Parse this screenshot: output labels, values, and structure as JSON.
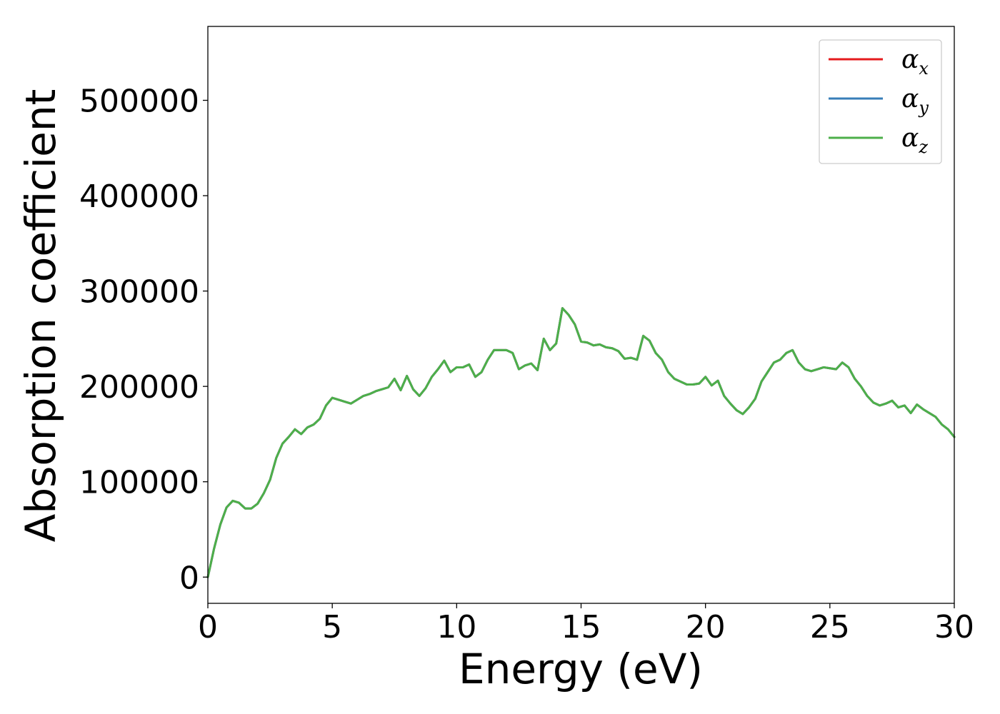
{
  "chart_data": {
    "type": "line",
    "xlabel": "Energy (eV)",
    "ylabel": "Absorption coefficient",
    "xlim": [
      0,
      30
    ],
    "ylim": [
      -27500,
      577500
    ],
    "xticks": [
      0,
      5,
      10,
      15,
      20,
      25,
      30
    ],
    "xtick_labels": [
      "0",
      "5",
      "10",
      "15",
      "20",
      "25",
      "30"
    ],
    "yticks": [
      0,
      100000,
      200000,
      300000,
      400000,
      500000
    ],
    "ytick_labels": [
      "0",
      "100000",
      "200000",
      "300000",
      "400000",
      "500000"
    ],
    "grid": false,
    "legend_position": "top-right",
    "x": [
      0.0,
      0.25,
      0.5,
      0.75,
      1.0,
      1.25,
      1.5,
      1.75,
      2.0,
      2.25,
      2.5,
      2.75,
      3.0,
      3.25,
      3.5,
      3.75,
      4.0,
      4.25,
      4.5,
      4.75,
      5.0,
      5.25,
      5.5,
      5.75,
      6.0,
      6.25,
      6.5,
      6.75,
      7.0,
      7.25,
      7.5,
      7.75,
      8.0,
      8.25,
      8.5,
      8.75,
      9.0,
      9.25,
      9.5,
      9.75,
      10.0,
      10.25,
      10.5,
      10.75,
      11.0,
      11.25,
      11.5,
      11.75,
      12.0,
      12.25,
      12.5,
      12.75,
      13.0,
      13.25,
      13.5,
      13.75,
      14.0,
      14.25,
      14.5,
      14.75,
      15.0,
      15.25,
      15.5,
      15.75,
      16.0,
      16.25,
      16.5,
      16.75,
      17.0,
      17.25,
      17.5,
      17.75,
      18.0,
      18.25,
      18.5,
      18.75,
      19.0,
      19.25,
      19.5,
      19.75,
      20.0,
      20.25,
      20.5,
      20.75,
      21.0,
      21.25,
      21.5,
      21.75,
      22.0,
      22.25,
      22.5,
      22.75,
      23.0,
      23.25,
      23.5,
      23.75,
      24.0,
      24.25,
      24.5,
      24.75,
      25.0,
      25.25,
      25.5,
      25.75,
      26.0,
      26.25,
      26.5,
      26.75,
      27.0,
      27.25,
      27.5,
      27.75,
      28.0,
      28.25,
      28.5,
      28.75,
      29.0,
      29.25,
      29.5,
      29.75,
      30.0
    ],
    "series": [
      {
        "name": "αx",
        "label_main": "α",
        "label_sub": "x",
        "color": "#e41a1c",
        "values": [
          0,
          30000,
          55000,
          73000,
          80000,
          78000,
          72000,
          72000,
          77000,
          88000,
          102000,
          125000,
          140000,
          147000,
          155000,
          150000,
          157000,
          160000,
          166000,
          180000,
          188000,
          186000,
          184000,
          182000,
          186000,
          190000,
          192000,
          195000,
          197000,
          199000,
          208000,
          196000,
          211000,
          197000,
          190000,
          198000,
          210000,
          218000,
          227000,
          215000,
          220000,
          220000,
          223000,
          210000,
          215000,
          228000,
          238000,
          238000,
          238000,
          235000,
          218000,
          222000,
          224000,
          217000,
          250000,
          238000,
          245000,
          282000,
          275000,
          265000,
          247000,
          246000,
          243000,
          244000,
          241000,
          240000,
          237000,
          229000,
          230000,
          228000,
          253000,
          248000,
          235000,
          228000,
          215000,
          208000,
          205000,
          202000,
          202000,
          203000,
          210000,
          201000,
          206000,
          190000,
          182000,
          175000,
          171000,
          178000,
          187000,
          205000,
          215000,
          225000,
          228000,
          235000,
          238000,
          225000,
          218000,
          216000,
          218000,
          220000,
          219000,
          218000,
          225000,
          220000,
          208000,
          200000,
          190000,
          183000,
          180000,
          182000,
          185000,
          178000,
          180000,
          172000,
          181000,
          176000,
          172000,
          168000,
          160000,
          155000,
          147000
        ]
      },
      {
        "name": "αy",
        "label_main": "α",
        "label_sub": "y",
        "color": "#377eb8",
        "values": [
          0,
          30000,
          55000,
          73000,
          80000,
          78000,
          72000,
          72000,
          77000,
          88000,
          102000,
          125000,
          140000,
          147000,
          155000,
          150000,
          157000,
          160000,
          166000,
          180000,
          188000,
          186000,
          184000,
          182000,
          186000,
          190000,
          192000,
          195000,
          197000,
          199000,
          208000,
          196000,
          211000,
          197000,
          190000,
          198000,
          210000,
          218000,
          227000,
          215000,
          220000,
          220000,
          223000,
          210000,
          215000,
          228000,
          238000,
          238000,
          238000,
          235000,
          218000,
          222000,
          224000,
          217000,
          250000,
          238000,
          245000,
          282000,
          275000,
          265000,
          247000,
          246000,
          243000,
          244000,
          241000,
          240000,
          237000,
          229000,
          230000,
          228000,
          253000,
          248000,
          235000,
          228000,
          215000,
          208000,
          205000,
          202000,
          202000,
          203000,
          210000,
          201000,
          206000,
          190000,
          182000,
          175000,
          171000,
          178000,
          187000,
          205000,
          215000,
          225000,
          228000,
          235000,
          238000,
          225000,
          218000,
          216000,
          218000,
          220000,
          219000,
          218000,
          225000,
          220000,
          208000,
          200000,
          190000,
          183000,
          180000,
          182000,
          185000,
          178000,
          180000,
          172000,
          181000,
          176000,
          172000,
          168000,
          160000,
          155000,
          147000
        ]
      },
      {
        "name": "αz",
        "label_main": "α",
        "label_sub": "z",
        "color": "#4daf4a",
        "values": [
          0,
          30000,
          55000,
          73000,
          80000,
          78000,
          72000,
          72000,
          77000,
          88000,
          102000,
          125000,
          140000,
          147000,
          155000,
          150000,
          157000,
          160000,
          166000,
          180000,
          188000,
          186000,
          184000,
          182000,
          186000,
          190000,
          192000,
          195000,
          197000,
          199000,
          208000,
          196000,
          211000,
          197000,
          190000,
          198000,
          210000,
          218000,
          227000,
          215000,
          220000,
          220000,
          223000,
          210000,
          215000,
          228000,
          238000,
          238000,
          238000,
          235000,
          218000,
          222000,
          224000,
          217000,
          250000,
          238000,
          245000,
          282000,
          275000,
          265000,
          247000,
          246000,
          243000,
          244000,
          241000,
          240000,
          237000,
          229000,
          230000,
          228000,
          253000,
          248000,
          235000,
          228000,
          215000,
          208000,
          205000,
          202000,
          202000,
          203000,
          210000,
          201000,
          206000,
          190000,
          182000,
          175000,
          171000,
          178000,
          187000,
          205000,
          215000,
          225000,
          228000,
          235000,
          238000,
          225000,
          218000,
          216000,
          218000,
          220000,
          219000,
          218000,
          225000,
          220000,
          208000,
          200000,
          190000,
          183000,
          180000,
          182000,
          185000,
          178000,
          180000,
          172000,
          181000,
          176000,
          172000,
          168000,
          160000,
          155000,
          147000
        ]
      }
    ]
  }
}
